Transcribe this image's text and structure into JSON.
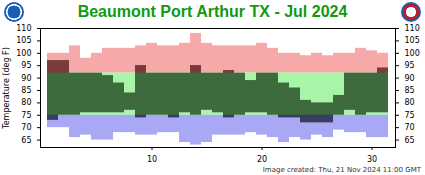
{
  "chart_data": {
    "type": "range_bar",
    "title": "Beaumont Port Arthur TX - Jul 2024",
    "caption": "Image created: Thu, 21 Nov 2024 11:00 GMT",
    "y_label": "Temperature (deg F)",
    "x": [
      1,
      2,
      3,
      4,
      5,
      6,
      7,
      8,
      9,
      10,
      11,
      12,
      13,
      14,
      15,
      16,
      17,
      18,
      19,
      20,
      21,
      22,
      23,
      24,
      25,
      26,
      27,
      28,
      29,
      30,
      31
    ],
    "xticks": [
      10,
      20,
      30
    ],
    "ylim": [
      62,
      110
    ],
    "yticks": [
      65,
      70,
      75,
      80,
      85,
      90,
      95,
      100,
      105,
      110
    ],
    "series": [
      {
        "color": "#f7a8a8",
        "low": [
          92,
          92,
          92,
          92,
          92,
          92,
          92,
          92,
          92,
          92,
          92,
          92,
          92,
          92,
          92,
          92,
          92,
          92,
          92,
          92,
          92,
          92,
          92,
          92,
          92,
          92,
          92,
          92,
          92,
          92,
          92
        ],
        "high": [
          100,
          100,
          103,
          98,
          100,
          102,
          102,
          102,
          103,
          104,
          103,
          103,
          104,
          108,
          104,
          103,
          103,
          103,
          103,
          104,
          102,
          100,
          100,
          99,
          100,
          99,
          100,
          100,
          102,
          101,
          100
        ]
      },
      {
        "color": "#a8f5a8",
        "low": [
          75,
          75,
          75,
          75,
          75,
          75,
          75,
          75,
          75,
          75,
          75,
          75,
          75,
          75,
          75,
          75,
          75,
          75,
          75,
          75,
          75,
          75,
          75,
          75,
          75,
          75,
          75,
          75,
          75,
          75,
          75
        ],
        "high": [
          92,
          92,
          92,
          92,
          92,
          92,
          92,
          92,
          92,
          92,
          92,
          92,
          92,
          92,
          92,
          92,
          92,
          92,
          92,
          92,
          92,
          92,
          92,
          92,
          92,
          92,
          92,
          92,
          92,
          92,
          92
        ]
      },
      {
        "color": "#a8a8f5",
        "low": [
          70,
          70,
          66,
          67,
          65,
          65,
          68,
          68,
          67,
          67,
          68,
          68,
          64,
          63,
          64,
          67,
          67,
          67,
          68,
          67,
          66,
          64,
          66,
          65,
          67,
          66,
          69,
          68,
          68,
          66,
          66
        ],
        "high": [
          75,
          75,
          75,
          75,
          75,
          75,
          75,
          75,
          75,
          75,
          75,
          75,
          75,
          75,
          75,
          75,
          75,
          75,
          75,
          75,
          75,
          75,
          75,
          75,
          75,
          75,
          75,
          75,
          75,
          75,
          75
        ]
      },
      {
        "color": "#3d6b3d",
        "low": [
          73,
          75,
          75,
          76,
          76,
          76,
          76,
          77,
          74,
          75,
          75,
          74,
          76,
          75,
          77,
          76,
          74,
          75,
          76,
          76,
          75,
          74,
          74,
          72,
          72,
          72,
          75,
          77,
          75,
          76,
          76
        ],
        "high": [
          97,
          97,
          92,
          92,
          92,
          91,
          88,
          84,
          95,
          92,
          92,
          92,
          92,
          95,
          92,
          92,
          93,
          92,
          89,
          92,
          92,
          88,
          86,
          81,
          80,
          80,
          83,
          92,
          92,
          92,
          94
        ]
      }
    ]
  }
}
